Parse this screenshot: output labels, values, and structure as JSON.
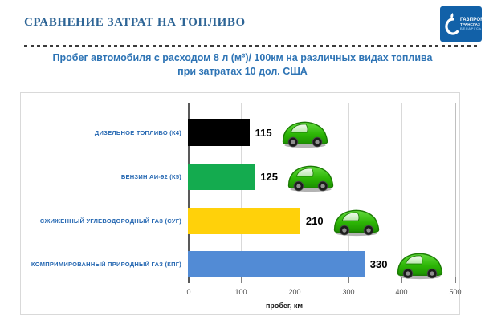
{
  "header": {
    "title": "СРАВНЕНИЕ ЗАТРАТ НА ТОПЛИВО",
    "subtitle_line1": "Пробег автомобиля с расходом 8 л (м³)/ 100км на различных видах топлива",
    "subtitle_line2": "при затратах 10 дол. США",
    "logo": {
      "line1": "ГАЗПРОМ",
      "line2": "ТРАНСГАЗ",
      "line3": "БЕЛАРУСЬ"
    }
  },
  "chart_data": {
    "type": "bar",
    "orientation": "horizontal",
    "title": "Пробег автомобиля с расходом 8 л (м³)/ 100км на различных видах топлива при затратах 10 дол. США",
    "xlabel": "пробег, км",
    "ylabel": "",
    "xlim": [
      0,
      500
    ],
    "xticks": [
      "0",
      "100",
      "200",
      "300",
      "400",
      "500"
    ],
    "grid": true,
    "legend": "none",
    "categories": [
      "ДИЗЕЛЬНОЕ ТОПЛИВО (К4)",
      "БЕНЗИН АИ-92 (К5)",
      "СЖИЖЕННЫЙ УГЛЕВОДОРОДНЫЙ ГАЗ (СУГ)",
      "КОМПРИМИРОВАННЫЙ ПРИРОДНЫЙ ГАЗ (КПГ)"
    ],
    "values": [
      115,
      125,
      210,
      330
    ],
    "rows": [
      {
        "label": "ДИЗЕЛЬНОЕ ТОПЛИВО (К4)",
        "value": 115,
        "color": "#000000"
      },
      {
        "label": "БЕНЗИН АИ-92 (К5)",
        "value": 125,
        "color": "#14AB4F"
      },
      {
        "label": "СЖИЖЕННЫЙ УГЛЕВОДОРОДНЫЙ ГАЗ (СУГ)",
        "value": 210,
        "color": "#FFD10A"
      },
      {
        "label": "КОМПРИМИРОВАННЫЙ ПРИРОДНЫЙ ГАЗ (КПГ)",
        "value": 330,
        "color": "#528BD5"
      }
    ],
    "annotation_icon": "green-car"
  },
  "colors": {
    "title": "#2E6596",
    "subtitle": "#2E74B5",
    "category_label": "#2668B2",
    "logo_bg": "#1261A8"
  }
}
